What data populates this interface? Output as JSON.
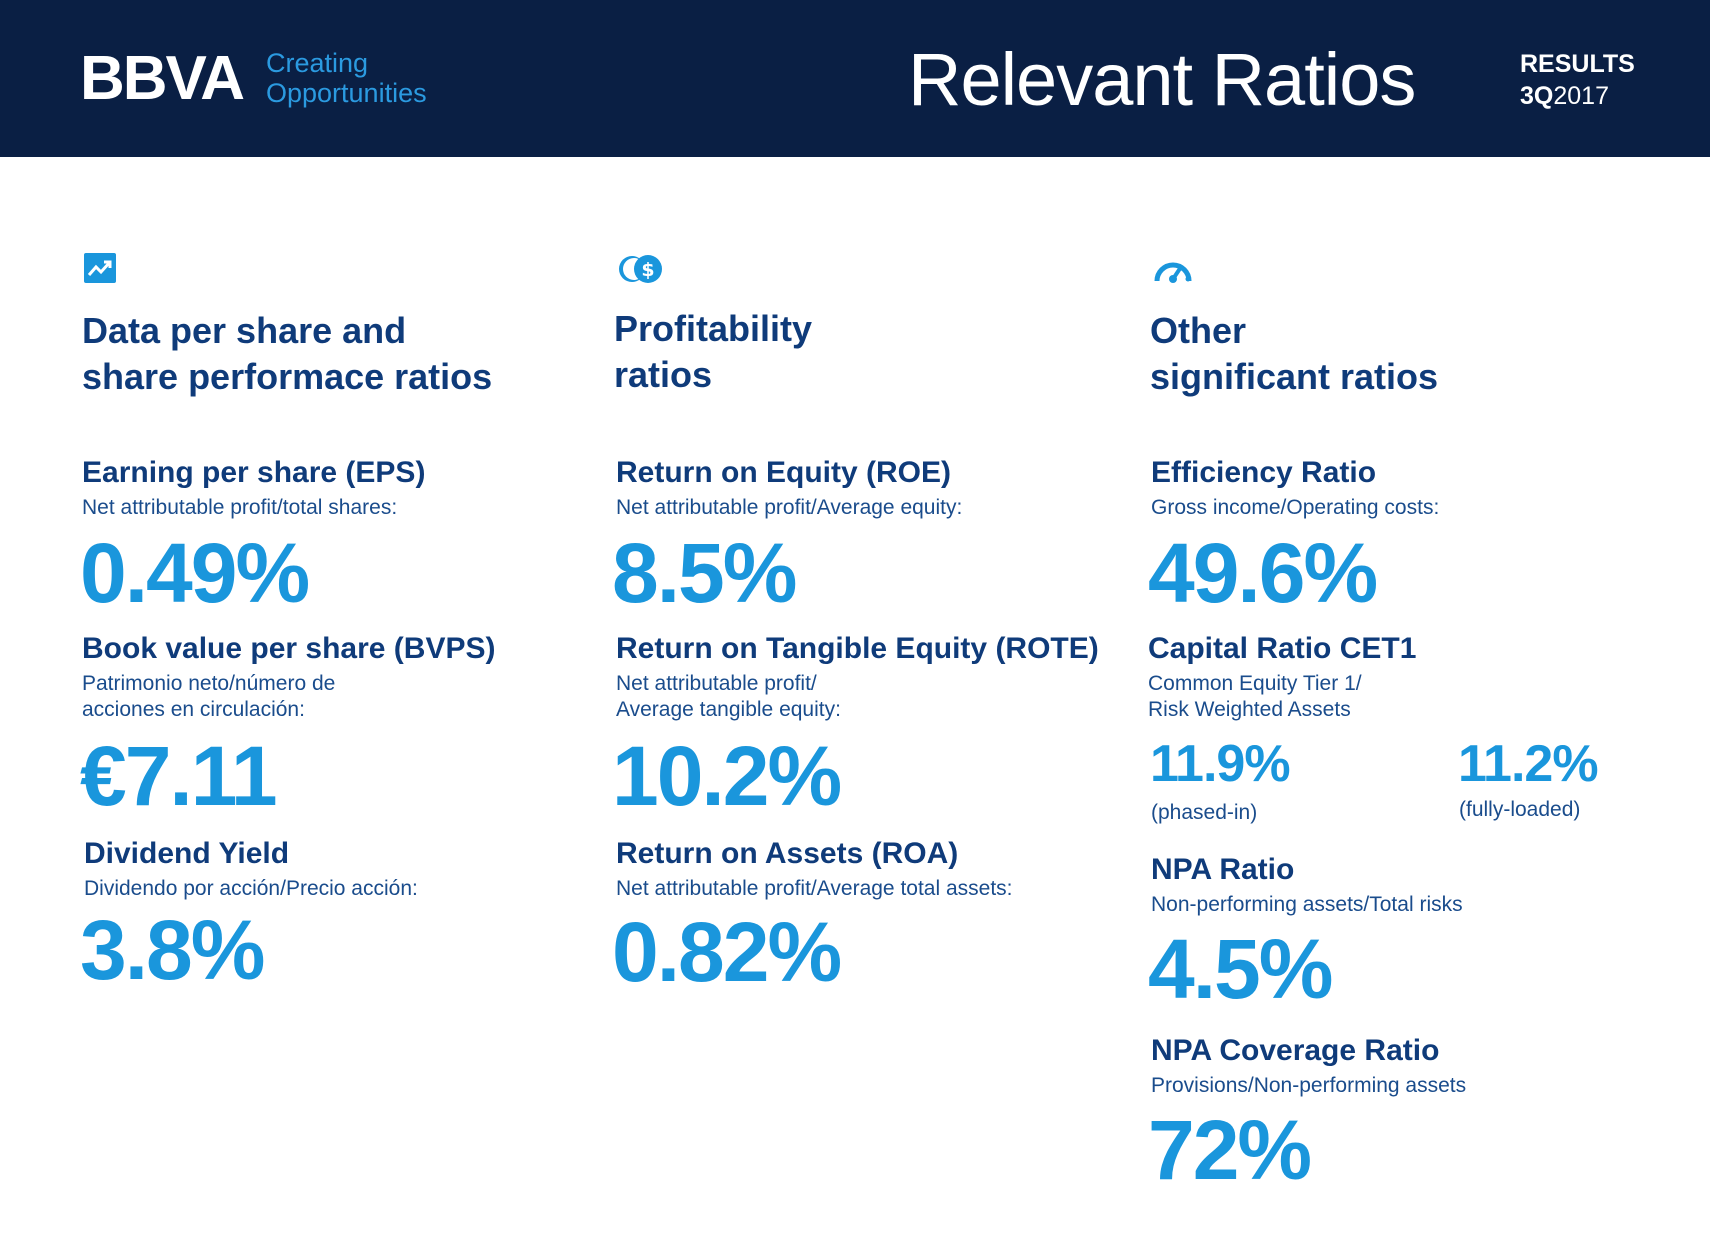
{
  "header": {
    "logo": "BBVA",
    "tagline_line1": "Creating",
    "tagline_line2": "Opportunities",
    "title": "Relevant Ratios",
    "results_label": "RESULTS",
    "period_quarter": "3Q",
    "period_year": "2017"
  },
  "colors": {
    "navy": "#0a1f44",
    "heading_blue": "#0f3b7a",
    "value_blue": "#1a96dc",
    "accent_blue": "#2b9ae0"
  },
  "columns": [
    {
      "icon": "trend-chart-icon",
      "heading_line1": "Data per share and",
      "heading_line2": "share performace ratios",
      "metrics": [
        {
          "title": "Earning per share (EPS)",
          "subtitle": "Net attributable profit/total shares:",
          "value": "0.49%"
        },
        {
          "title": "Book value per share (BVPS)",
          "subtitle_line1": "Patrimonio neto/número de",
          "subtitle_line2": "acciones en circulación:",
          "value": "€7.11"
        },
        {
          "title": "Dividend Yield",
          "subtitle": "Dividendo por acción/Precio acción:",
          "value": "3.8%"
        }
      ]
    },
    {
      "icon": "coins-dollar-icon",
      "heading_line1": "Profitability",
      "heading_line2": "ratios",
      "metrics": [
        {
          "title": "Return on Equity (ROE)",
          "subtitle": "Net attributable profit/Average equity:",
          "value": "8.5%"
        },
        {
          "title": "Return on Tangible Equity (ROTE)",
          "subtitle_line1": "Net attributable profit/",
          "subtitle_line2": "Average tangible equity:",
          "value": "10.2%"
        },
        {
          "title": "Return on Assets (ROA)",
          "subtitle": "Net attributable profit/Average total assets:",
          "value": "0.82%"
        }
      ]
    },
    {
      "icon": "speedometer-icon",
      "heading_line1": "Other",
      "heading_line2": "significant ratios",
      "metrics": [
        {
          "title": "Efficiency Ratio",
          "subtitle": "Gross income/Operating costs:",
          "value": "49.6%"
        },
        {
          "title": "Capital Ratio CET1",
          "subtitle_line1": "Common Equity Tier 1/",
          "subtitle_line2": "Risk Weighted Assets",
          "value_a": "11.9%",
          "note_a": "(phased-in)",
          "value_b": "11.2%",
          "note_b": "(fully-loaded)"
        },
        {
          "title": "NPA Ratio",
          "subtitle": "Non-performing assets/Total risks",
          "value": "4.5%"
        },
        {
          "title": "NPA Coverage Ratio",
          "subtitle": "Provisions/Non-performing assets",
          "value": "72%"
        }
      ]
    }
  ]
}
